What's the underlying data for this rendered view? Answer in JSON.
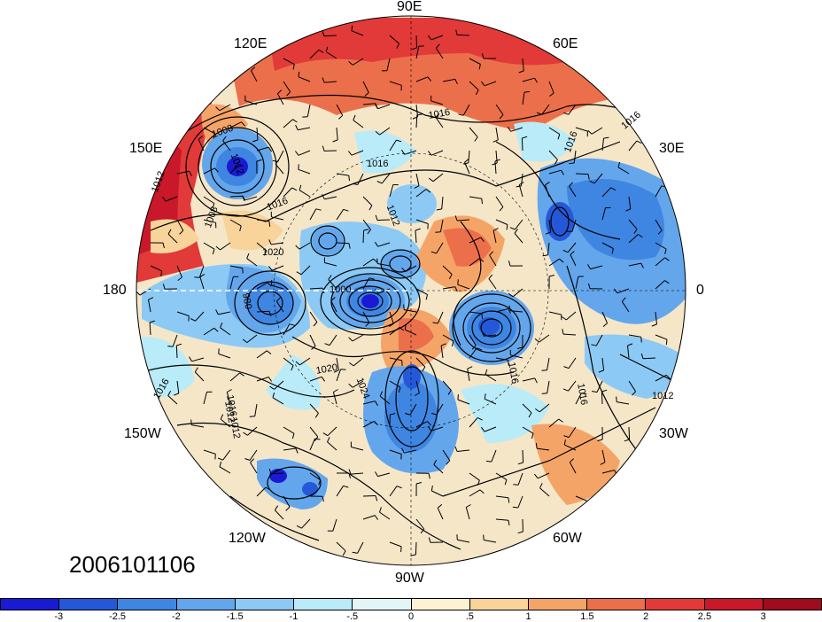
{
  "longitude_labels": {
    "lon_90e": "90E",
    "lon_120e": "120E",
    "lon_60e": "60E",
    "lon_150e": "150E",
    "lon_30e": "30E",
    "lon_180": "180",
    "lon_0": "0",
    "lon_150w": "150W",
    "lon_30w": "30W",
    "lon_120w": "120W",
    "lon_60w": "60W",
    "lon_90w": "90W"
  },
  "date_stamp": "2006101106",
  "isobar_labels": [
    "1008",
    "1012",
    "1016",
    "1016",
    "1016",
    "1012",
    "1016",
    "1016",
    "1012",
    "1020",
    "1008",
    "980",
    "1000",
    "1020",
    "1024",
    "1016",
    "1016",
    "1012",
    "1016",
    "1012",
    "1012",
    "1016"
  ],
  "colorbar": {
    "colors": [
      "#1a1ad2",
      "#2458d8",
      "#3f86e2",
      "#63a6ec",
      "#8ccaf5",
      "#b9ebf9",
      "#e2f6f7",
      "#fdf2d2",
      "#f8d39a",
      "#f5a468",
      "#ec6f4b",
      "#e13a38",
      "#c8182a",
      "#9e0c1e"
    ],
    "ticks": [
      "-3",
      "-2.5",
      "-2",
      "-1.5",
      "-1",
      "-.5",
      "0",
      ".5",
      "1",
      "1.5",
      "2",
      "2.5",
      "3"
    ]
  },
  "anomaly_levels": [
    "-3",
    "-2.5",
    "-2",
    "-1.5",
    "-1",
    "-.5",
    "0",
    ".5",
    "1",
    "1.5",
    "2",
    "2.5",
    "3"
  ]
}
